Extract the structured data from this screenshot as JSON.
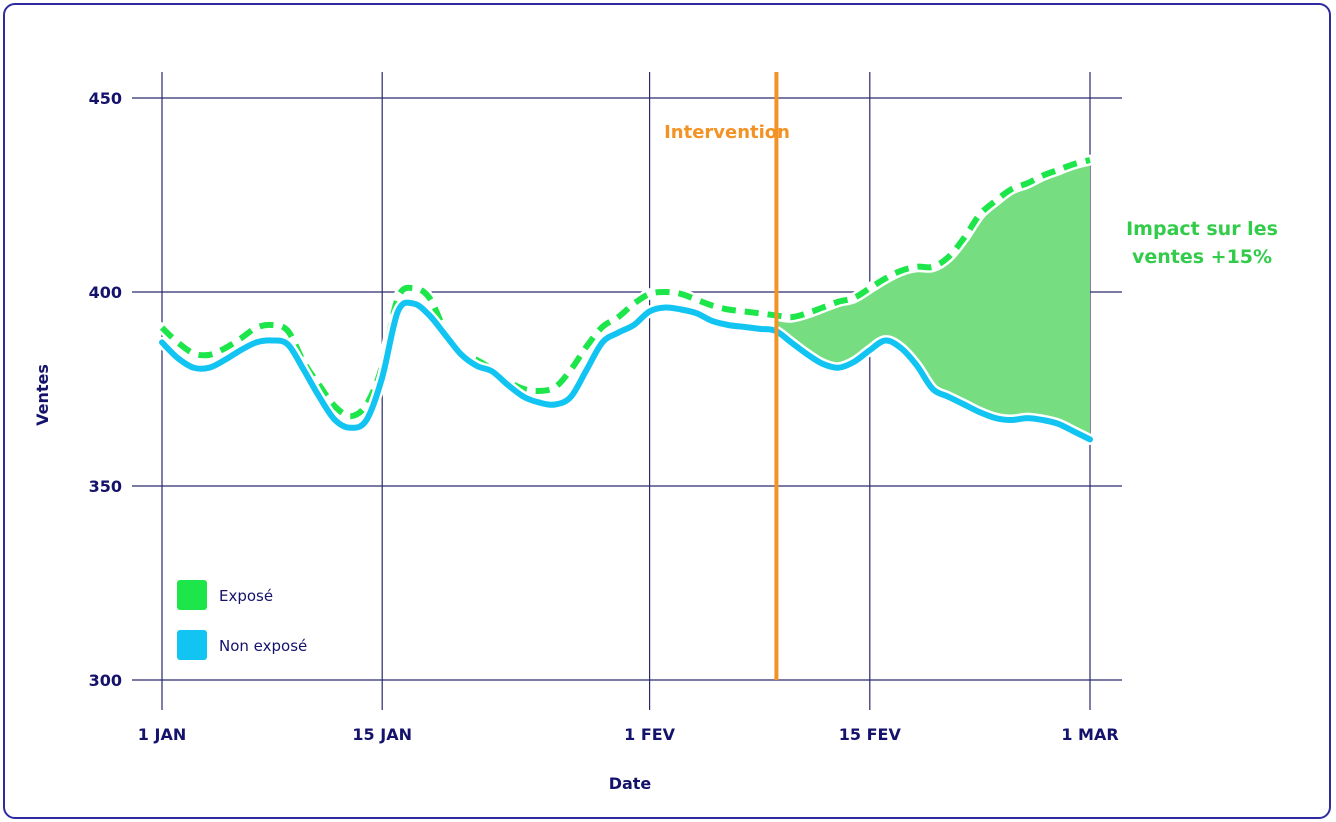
{
  "chart_data": {
    "type": "line",
    "xlabel": "Date",
    "ylabel": "Ventes",
    "ylim": [
      300,
      450
    ],
    "y_ticks": [
      300,
      350,
      400,
      450
    ],
    "x_ticks": [
      {
        "label": "1 JAN",
        "day": 0
      },
      {
        "label": "15 JAN",
        "day": 14
      },
      {
        "label": "1 FEV",
        "day": 31
      },
      {
        "label": "15 FEV",
        "day": 45
      },
      {
        "label": "1 MAR",
        "day": 59
      }
    ],
    "grid": true,
    "intervention": {
      "label": "Intervention",
      "day": 39,
      "color": "#f39325"
    },
    "impact_annotation": {
      "line1": "Impact sur les",
      "line2": "ventes +15%",
      "color": "#33cc4a"
    },
    "impact_fill_color": "#76dd80",
    "series": [
      {
        "name": "Exposé",
        "color": "#1de64a",
        "style": "dashed",
        "x": [
          0,
          1,
          2,
          3,
          4,
          5,
          6,
          7,
          8,
          9,
          10,
          11,
          12,
          13,
          14,
          15,
          16,
          17,
          18,
          19,
          20,
          21,
          22,
          23,
          24,
          25,
          26,
          27,
          28,
          29,
          30,
          31,
          32,
          33,
          34,
          35,
          36,
          37,
          38,
          39,
          40,
          41,
          42,
          43,
          44,
          45,
          46,
          47,
          48,
          49,
          50,
          51,
          52,
          53,
          54,
          55,
          56,
          57,
          58,
          59
        ],
        "values": [
          390.8,
          387,
          384.2,
          383.8,
          385.5,
          388,
          390.8,
          391.5,
          390,
          382,
          376,
          370.5,
          368,
          371,
          381,
          398.5,
          401,
          398.5,
          390,
          384,
          382.5,
          380,
          377,
          375,
          374.5,
          375.5,
          380,
          386,
          391,
          393.5,
          397,
          399.5,
          400,
          399.5,
          398,
          396.5,
          395.5,
          395,
          394.5,
          394,
          393.5,
          394.5,
          396,
          397.5,
          398.5,
          401,
          403.5,
          405.5,
          406.5,
          406.5,
          409,
          414,
          420,
          423.5,
          426.5,
          428,
          430,
          431.5,
          433,
          434
        ]
      },
      {
        "name": "Non exposé",
        "color": "#12c4f2",
        "style": "solid",
        "x": [
          0,
          1,
          2,
          3,
          4,
          5,
          6,
          7,
          8,
          9,
          10,
          11,
          12,
          13,
          14,
          15,
          16,
          17,
          18,
          19,
          20,
          21,
          22,
          23,
          24,
          25,
          26,
          27,
          28,
          29,
          30,
          31,
          32,
          33,
          34,
          35,
          36,
          37,
          38,
          39,
          40,
          41,
          42,
          43,
          44,
          45,
          46,
          47,
          48,
          49,
          50,
          51,
          52,
          53,
          54,
          55,
          56,
          57,
          58,
          59
        ],
        "values": [
          387,
          383,
          380.5,
          380.5,
          382.5,
          385,
          387,
          387.5,
          386.5,
          380,
          373,
          367,
          365,
          367,
          378,
          395,
          397,
          394,
          389,
          384,
          381,
          379.5,
          376,
          373,
          371.5,
          371,
          373,
          380,
          387,
          389.5,
          391.5,
          395,
          396,
          395.5,
          394.5,
          392.5,
          391.5,
          391,
          390.5,
          390,
          387,
          384,
          381.5,
          380.5,
          382,
          385,
          387.5,
          385.5,
          381,
          375,
          373,
          371,
          369,
          367.5,
          367,
          367.5,
          367,
          366,
          364,
          362
        ]
      }
    ]
  },
  "legend": {
    "items": [
      {
        "label": "Exposé",
        "color": "#1de64a"
      },
      {
        "label": "Non exposé",
        "color": "#12c4f2"
      }
    ]
  }
}
